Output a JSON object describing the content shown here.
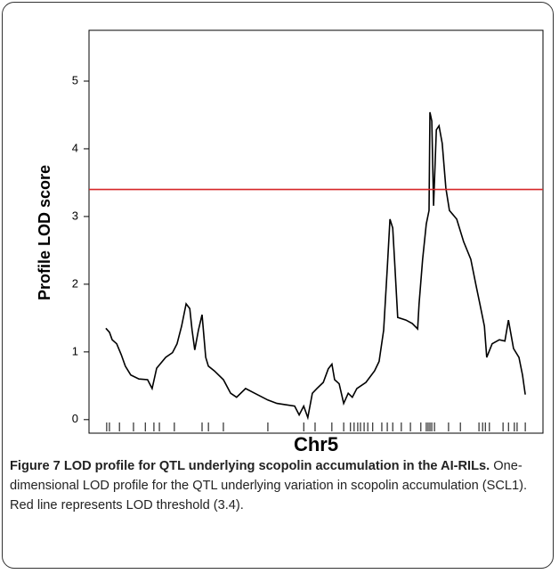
{
  "chart_data": {
    "type": "line",
    "y_label": "Profile LOD score",
    "x_label": "Chr5",
    "ylim": [
      -0.2,
      5.75
    ],
    "yticks": [
      0,
      1,
      2,
      3,
      4,
      5
    ],
    "xlim": [
      0,
      100
    ],
    "color": "#000000",
    "threshold": {
      "value": 3.4,
      "color": "#d62728"
    },
    "x": [
      3.7,
      4.5,
      5.1,
      6.1,
      7.1,
      8.0,
      9.2,
      11.0,
      12.9,
      13.9,
      14.9,
      16.9,
      18.4,
      19.4,
      20.4,
      21.4,
      22.2,
      22.7,
      23.3,
      24.1,
      24.9,
      25.7,
      26.3,
      27.6,
      29.6,
      31.2,
      32.5,
      34.5,
      36.5,
      39.4,
      41.4,
      43.3,
      45.3,
      46.3,
      47.3,
      48.2,
      49.2,
      50.2,
      51.6,
      52.7,
      53.5,
      54.1,
      55.1,
      56.1,
      57.1,
      58.0,
      59.0,
      61.0,
      62.9,
      63.9,
      64.9,
      65.7,
      66.3,
      66.9,
      67.3,
      68.0,
      69.8,
      71.2,
      72.4,
      72.7,
      73.5,
      74.3,
      74.9,
      75.1,
      75.5,
      75.9,
      76.5,
      77.1,
      77.8,
      78.6,
      79.4,
      81.0,
      82.5,
      84.1,
      85.3,
      86.1,
      87.1,
      87.6,
      88.8,
      90.4,
      91.6,
      92.4,
      93.5,
      94.7,
      95.5,
      96.1
    ],
    "values": [
      1.35,
      1.29,
      1.18,
      1.12,
      0.96,
      0.79,
      0.66,
      0.6,
      0.59,
      0.46,
      0.76,
      0.92,
      0.99,
      1.12,
      1.38,
      1.71,
      1.64,
      1.32,
      1.03,
      1.32,
      1.55,
      0.92,
      0.79,
      0.72,
      0.59,
      0.39,
      0.33,
      0.46,
      0.39,
      0.29,
      0.24,
      0.22,
      0.2,
      0.07,
      0.2,
      0.03,
      0.39,
      0.46,
      0.55,
      0.75,
      0.82,
      0.59,
      0.53,
      0.24,
      0.39,
      0.33,
      0.46,
      0.55,
      0.72,
      0.86,
      1.32,
      2.24,
      2.96,
      2.83,
      2.37,
      1.51,
      1.47,
      1.42,
      1.34,
      1.71,
      2.37,
      2.89,
      3.09,
      4.54,
      4.41,
      3.16,
      4.28,
      4.34,
      4.08,
      3.42,
      3.09,
      2.96,
      2.63,
      2.37,
      1.97,
      1.71,
      1.38,
      0.92,
      1.12,
      1.18,
      1.16,
      1.47,
      1.05,
      0.92,
      0.66,
      0.37
    ],
    "markers": [
      3.9,
      4.5,
      6.7,
      9.8,
      12.4,
      14.3,
      15.5,
      18.8,
      24.9,
      26.3,
      29.6,
      39.4,
      47.3,
      49.8,
      53.5,
      56.1,
      57.6,
      58.4,
      59.2,
      59.8,
      60.6,
      61.4,
      62.5,
      64.5,
      65.7,
      66.9,
      68.8,
      70.8,
      73.1,
      74.3,
      74.7,
      75.1,
      75.5,
      76.1,
      79.2,
      81.8,
      85.9,
      86.7,
      87.3,
      88.2,
      91.2,
      92.4,
      93.7,
      94.3,
      96.1
    ]
  },
  "caption": {
    "title": "Figure 7 LOD profile for QTL underlying scopolin accumulation in the AI-RILs.",
    "text": "One-dimensional LOD profile for the QTL underlying variation in scopolin accumulation (SCL1). Red line represents LOD threshold (3.4)."
  }
}
